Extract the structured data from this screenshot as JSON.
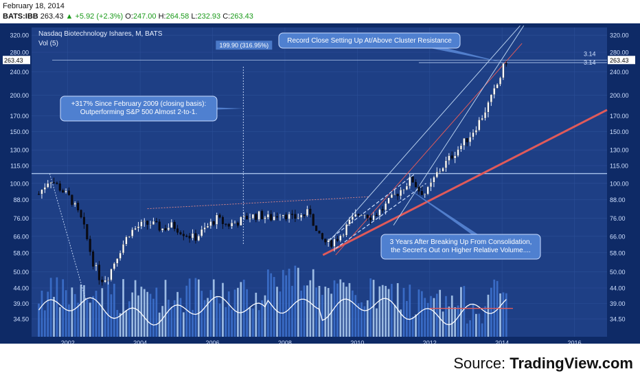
{
  "header": {
    "date": "February 18, 2014",
    "symbol": "BATS:IBB",
    "last": "263.43",
    "change": "+5.92 (+2.3%)",
    "open_label": "O:",
    "open": "247.00",
    "high_label": "H:",
    "high": "264.58",
    "low_label": "L:",
    "low": "232.93",
    "close_label": "C:",
    "close": "263.43"
  },
  "source": {
    "prefix": "Source: ",
    "name": "TradingView.com"
  },
  "colors": {
    "background": "#1e3f85",
    "bull_candle": "#ffffff",
    "bear_candle": "#0b0b14",
    "trendline": "#e05a5a",
    "channel": "#b8d0ee",
    "volume_light": "#a8c8ec",
    "volume_dark": "#3c70cc",
    "volume_ma": "#ffffff"
  },
  "chart_data": {
    "type": "candlestick",
    "title": "Nasdaq Biotechnology Ishares, M, BATS",
    "indicator": "Vol (5)",
    "scale": "log",
    "ylim": [
      30,
      340
    ],
    "xlim": [
      2001.0,
      2016.9
    ],
    "y_ticks": [
      "320.00",
      "280.00",
      "240.00",
      "200.00",
      "170.00",
      "150.00",
      "130.00",
      "115.00",
      "100.00",
      "88.00",
      "76.00",
      "66.00",
      "58.00",
      "50.00",
      "44.00",
      "39.00",
      "34.50"
    ],
    "x_ticks": [
      "2002",
      "2004",
      "2006",
      "2008",
      "2010",
      "2012",
      "2014",
      "2016"
    ],
    "last_price_label": "263.43",
    "fib_label_1": "3.14",
    "fib_label_2": "3.14",
    "measure_label": "199.90 (316.95%)",
    "annotations": [
      "+317% Since February 2009 (closing basis):",
      "Outperforming S&P 500  Almost 2-to-1.",
      "Record Close Setting Up At/Above Cluster Resistance",
      "3 Years After Breaking Up From Consolidation,",
      "the Secret's Out on Higher Relative Volume...."
    ],
    "resistance_level": 108,
    "price_path": [
      [
        2001.2,
        92
      ],
      [
        2001.5,
        104
      ],
      [
        2001.8,
        96
      ],
      [
        2002.1,
        88
      ],
      [
        2002.4,
        74
      ],
      [
        2002.7,
        54
      ],
      [
        2002.9,
        47
      ],
      [
        2003.1,
        48
      ],
      [
        2003.4,
        58
      ],
      [
        2003.7,
        68
      ],
      [
        2004.0,
        72
      ],
      [
        2004.3,
        73
      ],
      [
        2004.6,
        70
      ],
      [
        2004.9,
        72
      ],
      [
        2005.2,
        68
      ],
      [
        2005.5,
        65
      ],
      [
        2005.8,
        70
      ],
      [
        2006.1,
        76
      ],
      [
        2006.4,
        72
      ],
      [
        2006.7,
        74
      ],
      [
        2007.0,
        77
      ],
      [
        2007.3,
        78
      ],
      [
        2007.6,
        76
      ],
      [
        2007.9,
        80
      ],
      [
        2008.2,
        76
      ],
      [
        2008.5,
        78
      ],
      [
        2008.7,
        80
      ],
      [
        2008.9,
        66
      ],
      [
        2009.2,
        62
      ],
      [
        2009.5,
        66
      ],
      [
        2009.8,
        74
      ],
      [
        2010.1,
        80
      ],
      [
        2010.4,
        77
      ],
      [
        2010.7,
        82
      ],
      [
        2011.0,
        90
      ],
      [
        2011.3,
        98
      ],
      [
        2011.5,
        104
      ],
      [
        2011.7,
        95
      ],
      [
        2011.9,
        92
      ],
      [
        2012.2,
        108
      ],
      [
        2012.5,
        120
      ],
      [
        2012.8,
        132
      ],
      [
        2013.1,
        145
      ],
      [
        2013.4,
        165
      ],
      [
        2013.7,
        195
      ],
      [
        2013.9,
        222
      ],
      [
        2014.1,
        263
      ]
    ],
    "volume_level_a": [
      39.3,
      37.5
    ],
    "volume_level_b": [
      36.0,
      42.0
    ],
    "red_trendline": [
      [
        2009.05,
        57
      ],
      [
        2016.9,
        178
      ]
    ],
    "upper_channel": [
      [
        2009.2,
        63
      ],
      [
        2014.5,
        345
      ]
    ],
    "lower_channel": [
      [
        2009.4,
        57
      ],
      [
        2014.55,
        300
      ]
    ],
    "dashed_channel": [
      [
        2009.2,
        64
      ],
      [
        2011.6,
        108
      ]
    ],
    "dotted_top": [
      [
        2004.2,
        82
      ],
      [
        2010.3,
        90
      ]
    ],
    "dotted_down": [
      [
        2001.5,
        108
      ],
      [
        2002.5,
        40
      ]
    ]
  }
}
